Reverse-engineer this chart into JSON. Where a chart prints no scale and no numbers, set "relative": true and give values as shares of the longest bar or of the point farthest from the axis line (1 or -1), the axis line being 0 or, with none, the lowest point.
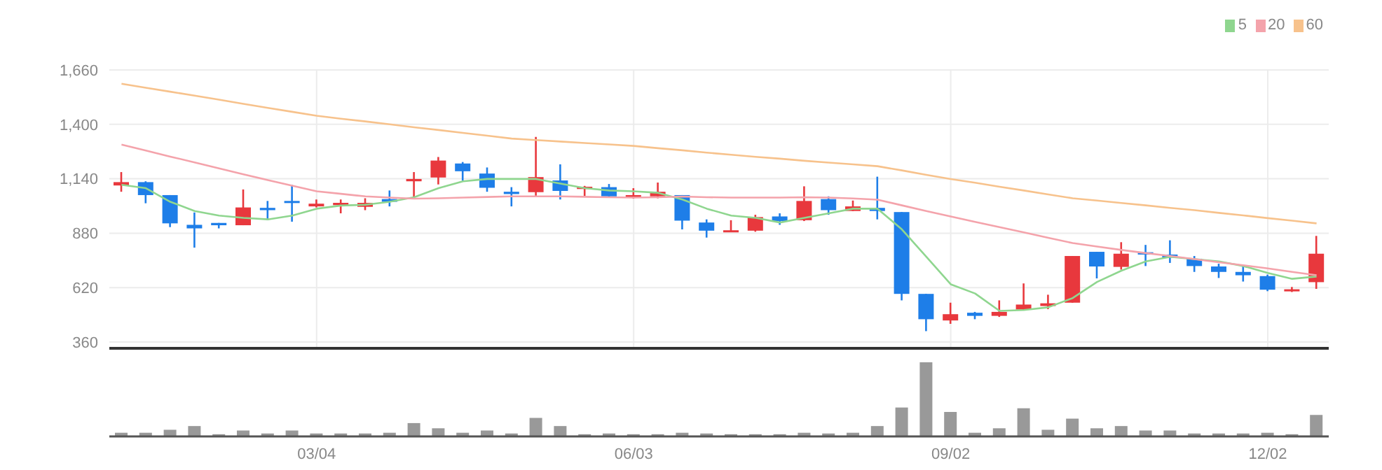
{
  "chart_data": [
    {
      "type": "candlestick",
      "categories": [
        null,
        null,
        null,
        null,
        null,
        null,
        null,
        null,
        null,
        null,
        null,
        null,
        null,
        null,
        null,
        null,
        null,
        null,
        null,
        null,
        null,
        null,
        null,
        null,
        null,
        null,
        null,
        null,
        null,
        null,
        null,
        null,
        null,
        null,
        null,
        null,
        null,
        null,
        null,
        null,
        null,
        null,
        null,
        null,
        null,
        null,
        null,
        null,
        null,
        null
      ],
      "ohlc": [
        [
          1108,
          1172,
          1078,
          1124
        ],
        [
          1124,
          1128,
          1023,
          1062
        ],
        [
          1062,
          1062,
          909,
          927
        ],
        [
          920,
          979,
          811,
          903
        ],
        [
          929,
          929,
          903,
          918
        ],
        [
          918,
          1089,
          918,
          1003
        ],
        [
          1001,
          1034,
          942,
          990
        ],
        [
          1034,
          1111,
          935,
          1027
        ],
        [
          1008,
          1041,
          1003,
          1021
        ],
        [
          1014,
          1041,
          975,
          1025
        ],
        [
          1006,
          1047,
          990,
          1025
        ],
        [
          1043,
          1084,
          1008,
          1030
        ],
        [
          1128,
          1172,
          1045,
          1139
        ],
        [
          1146,
          1244,
          1113,
          1227
        ],
        [
          1213,
          1220,
          1132,
          1176
        ],
        [
          1165,
          1194,
          1078,
          1097
        ],
        [
          1078,
          1100,
          1008,
          1067
        ],
        [
          1076,
          1340,
          1056,
          1148
        ],
        [
          1132,
          1209,
          1041,
          1082
        ],
        [
          1091,
          1106,
          1056,
          1102
        ],
        [
          1100,
          1115,
          1052,
          1056
        ],
        [
          1049,
          1095,
          1045,
          1062
        ],
        [
          1056,
          1122,
          1047,
          1078
        ],
        [
          1062,
          1062,
          898,
          940
        ],
        [
          931,
          946,
          859,
          892
        ],
        [
          885,
          942,
          885,
          894
        ],
        [
          892,
          968,
          887,
          957
        ],
        [
          960,
          975,
          920,
          938
        ],
        [
          942,
          1104,
          938,
          1034
        ],
        [
          1043,
          1056,
          968,
          990
        ],
        [
          986,
          1036,
          986,
          1008
        ],
        [
          1001,
          1150,
          946,
          986
        ],
        [
          981,
          981,
          559,
          590
        ],
        [
          590,
          590,
          412,
          469
        ],
        [
          463,
          548,
          447,
          493
        ],
        [
          500,
          504,
          469,
          485
        ],
        [
          485,
          559,
          480,
          504
        ],
        [
          515,
          640,
          513,
          539
        ],
        [
          532,
          586,
          517,
          545
        ],
        [
          548,
          771,
          548,
          771
        ],
        [
          791,
          791,
          664,
          721
        ],
        [
          719,
          837,
          706,
          782
        ],
        [
          789,
          824,
          723,
          778
        ],
        [
          778,
          846,
          738,
          763
        ],
        [
          758,
          771,
          695,
          723
        ],
        [
          721,
          734,
          666,
          695
        ],
        [
          695,
          728,
          649,
          679
        ],
        [
          675,
          682,
          603,
          610
        ],
        [
          603,
          623,
          599,
          612
        ],
        [
          646,
          867,
          614,
          782
        ]
      ],
      "colors": [
        "#e8383d",
        "#1e7ee8",
        "#1e7ee8",
        "#1e7ee8",
        "#1e7ee8",
        "#e8383d",
        "#1e7ee8",
        "#1e7ee8",
        "#e8383d",
        "#e8383d",
        "#e8383d",
        "#1e7ee8",
        "#e8383d",
        "#e8383d",
        "#1e7ee8",
        "#1e7ee8",
        "#1e7ee8",
        "#e8383d",
        "#1e7ee8",
        "#e8383d",
        "#1e7ee8",
        "#e8383d",
        "#e8383d",
        "#1e7ee8",
        "#1e7ee8",
        "#e8383d",
        "#e8383d",
        "#1e7ee8",
        "#e8383d",
        "#1e7ee8",
        "#e8383d",
        "#1e7ee8",
        "#1e7ee8",
        "#1e7ee8",
        "#e8383d",
        "#1e7ee8",
        "#e8383d",
        "#e8383d",
        "#e8383d",
        "#e8383d",
        "#1e7ee8",
        "#e8383d",
        "#1e7ee8",
        "#1e7ee8",
        "#1e7ee8",
        "#1e7ee8",
        "#1e7ee8",
        "#1e7ee8",
        "#e8383d",
        "#e8383d"
      ],
      "series": [
        {
          "type": "line",
          "name": "5",
          "color": "#8fd68f",
          "values": [
            1111,
            1095,
            1030,
            986,
            964,
            953,
            946,
            964,
            997,
            1012,
            1016,
            1030,
            1052,
            1095,
            1128,
            1139,
            1139,
            1139,
            1117,
            1095,
            1084,
            1080,
            1073,
            1041,
            997,
            964,
            953,
            931,
            953,
            975,
            997,
            997,
            898,
            767,
            636,
            592,
            509,
            513,
            526,
            570,
            647,
            701,
            745,
            767,
            756,
            745,
            723,
            690,
            662,
            673
          ]
        },
        {
          "type": "line",
          "name": "20",
          "color": "#f4a3ab",
          "values": [
            1303,
            1275,
            1246,
            1218,
            1190,
            1161,
            1134,
            1107,
            1080,
            1068,
            1056,
            1050,
            1045,
            1047,
            1050,
            1053,
            1056,
            1056,
            1056,
            1054,
            1052,
            1050,
            1052,
            1055,
            1052,
            1050,
            1050,
            1050,
            1052,
            1050,
            1046,
            1040,
            1013,
            986,
            960,
            934,
            909,
            884,
            858,
            833,
            816,
            800,
            785,
            771,
            756,
            741,
            727,
            712,
            695,
            679
          ]
        },
        {
          "type": "line",
          "name": "60",
          "color": "#f7c28c",
          "values": [
            1594,
            1575,
            1556,
            1537,
            1518,
            1498,
            1479,
            1460,
            1441,
            1427,
            1414,
            1400,
            1386,
            1373,
            1359,
            1346,
            1332,
            1325,
            1318,
            1311,
            1304,
            1297,
            1286,
            1276,
            1265,
            1255,
            1245,
            1236,
            1226,
            1217,
            1209,
            1200,
            1180,
            1159,
            1139,
            1121,
            1102,
            1084,
            1065,
            1047,
            1036,
            1024,
            1013,
            1001,
            990,
            977,
            965,
            952,
            940,
            927
          ]
        }
      ],
      "ylim": [
        330,
        1660
      ],
      "yticks": [
        360,
        620,
        880,
        {
          "value": 1140,
          "label": "1,140"
        },
        {
          "value": 1400,
          "label": "1,400"
        },
        {
          "value": 1660,
          "label": "1,660"
        }
      ],
      "grid": true,
      "legend": "top right",
      "tick_labels": "y"
    },
    {
      "type": "bar",
      "relative": true,
      "tick_labels": "x",
      "color": "#999999",
      "categories": [
        null,
        null,
        null,
        null,
        null,
        null,
        null,
        null,
        "03/04",
        null,
        null,
        null,
        null,
        null,
        null,
        null,
        null,
        null,
        null,
        null,
        null,
        "06/03",
        null,
        null,
        null,
        null,
        null,
        null,
        null,
        null,
        null,
        null,
        null,
        null,
        "09/02",
        null,
        null,
        null,
        null,
        null,
        null,
        null,
        null,
        null,
        null,
        null,
        null,
        "12/02",
        null,
        null
      ],
      "values": [
        0.05,
        0.05,
        0.09,
        0.14,
        0.03,
        0.08,
        0.04,
        0.08,
        0.04,
        0.04,
        0.04,
        0.05,
        0.18,
        0.11,
        0.05,
        0.08,
        0.04,
        0.25,
        0.14,
        0.03,
        0.04,
        0.03,
        0.03,
        0.05,
        0.04,
        0.03,
        0.03,
        0.03,
        0.05,
        0.04,
        0.05,
        0.14,
        0.39,
        1,
        0.33,
        0.05,
        0.11,
        0.38,
        0.09,
        0.24,
        0.11,
        0.14,
        0.08,
        0.08,
        0.04,
        0.04,
        0.04,
        0.05,
        0.03,
        0.29
      ]
    }
  ]
}
